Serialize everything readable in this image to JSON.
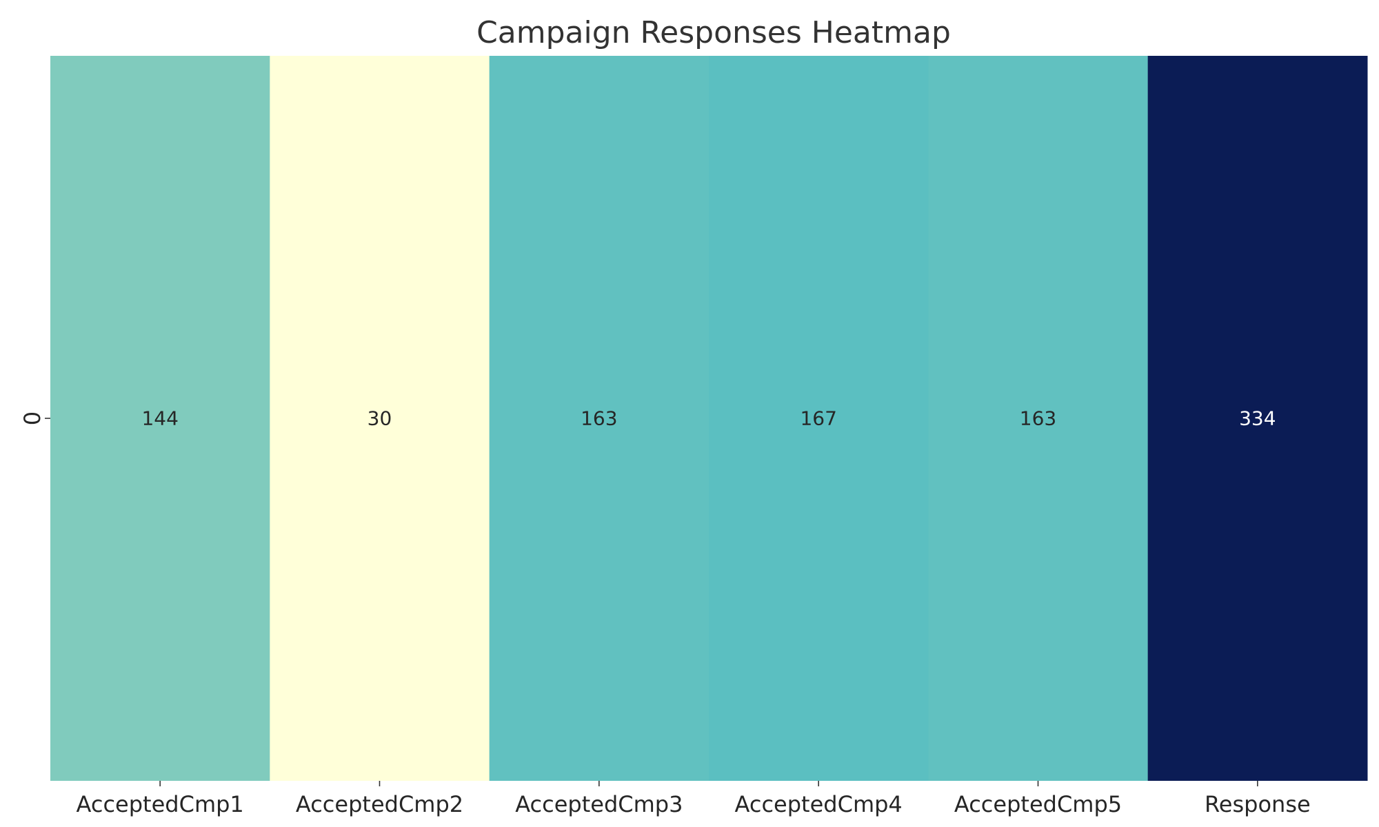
{
  "chart_data": {
    "type": "heatmap",
    "title": "Campaign Responses Heatmap",
    "xlabel": "",
    "ylabel": "",
    "columns": [
      "AcceptedCmp1",
      "AcceptedCmp2",
      "AcceptedCmp3",
      "AcceptedCmp4",
      "AcceptedCmp5",
      "Response"
    ],
    "rows": [
      "0"
    ],
    "values": [
      [
        144,
        30,
        163,
        167,
        163,
        334
      ]
    ],
    "colormap": "YlGnBu",
    "cell_colors": [
      "#80cbbd",
      "#ffffd9",
      "#61c1c0",
      "#5bbfc1",
      "#61c1c0",
      "#0b1c55"
    ],
    "annotation_colors": [
      "#262626",
      "#262626",
      "#262626",
      "#262626",
      "#262626",
      "#ffffff"
    ],
    "grid": false,
    "colorbar": false
  }
}
